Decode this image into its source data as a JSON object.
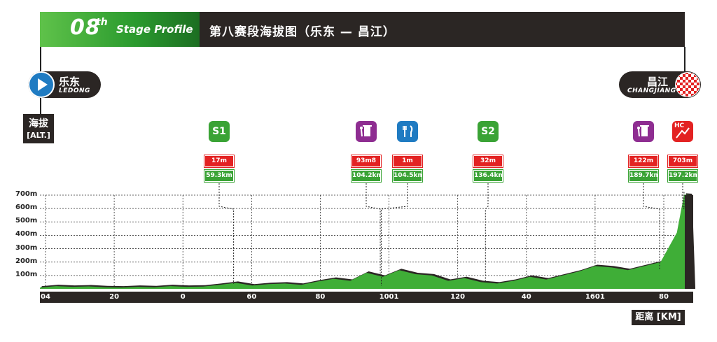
{
  "header": {
    "stage_number": "08",
    "stage_suffix": "th",
    "stage_label": "Stage Profile",
    "stage_title": "第八赛段海拔图（乐东 — 昌江）",
    "green_color": "#2a9a2e",
    "dark_color": "#2b2624"
  },
  "start": {
    "name_cn": "乐东",
    "name_en": "LEDONG",
    "icon": "play-arrow-icon"
  },
  "finish": {
    "name_cn": "昌江",
    "name_en": "CHANGJIANG",
    "icon": "checkered-flag-icon"
  },
  "altitude_box": {
    "cn": "海拔",
    "en": "[ALT.]"
  },
  "distance_box": {
    "label": "距离 [KM]"
  },
  "chart_data": {
    "type": "area",
    "y_ticks": [
      "100m",
      "200m",
      "300m",
      "400m",
      "500m",
      "600m",
      "700m"
    ],
    "x_ticks": [
      "04",
      "20",
      "0",
      "60",
      "80",
      "1001",
      "120",
      "40",
      "1601",
      "80"
    ],
    "ylim": [
      0,
      700
    ],
    "xlim": [
      0,
      200
    ],
    "grid": true,
    "profile": {
      "x": [
        0,
        5,
        10,
        15,
        20,
        25,
        30,
        35,
        40,
        45,
        50,
        55,
        60,
        65,
        70,
        75,
        80,
        85,
        90,
        95,
        100,
        105,
        110,
        115,
        120,
        125,
        130,
        135,
        140,
        145,
        150,
        155,
        160,
        165,
        170,
        175,
        180,
        185,
        190,
        195,
        197.2,
        199,
        200
      ],
      "y": [
        10,
        20,
        15,
        18,
        12,
        10,
        15,
        12,
        20,
        15,
        17,
        30,
        45,
        25,
        35,
        40,
        30,
        55,
        75,
        60,
        120,
        90,
        140,
        110,
        100,
        60,
        80,
        50,
        40,
        60,
        90,
        70,
        100,
        130,
        170,
        160,
        140,
        170,
        200,
        420,
        703,
        700,
        0
      ]
    },
    "markers": [
      {
        "type": "sprint",
        "label": "S1",
        "icon": "sprint-icon",
        "color": "#3aa335",
        "altitude": "17m",
        "km": "59.3km",
        "x": 59.3
      },
      {
        "type": "bin",
        "label": "",
        "icon": "trash-bin-icon",
        "color": "#8e2d91",
        "altitude": "93m8",
        "km": "104.2km",
        "x": 104.2
      },
      {
        "type": "feed",
        "label": "",
        "icon": "feed-zone-icon",
        "color": "#1f7bc2",
        "altitude": "1m",
        "km": "104.5km",
        "x": 104.5
      },
      {
        "type": "sprint",
        "label": "S2",
        "icon": "sprint-icon",
        "color": "#3aa335",
        "altitude": "32m",
        "km": "136.4km",
        "x": 136.4
      },
      {
        "type": "bin",
        "label": "",
        "icon": "trash-bin-icon",
        "color": "#8e2d91",
        "altitude": "122m",
        "km": "189.7km",
        "x": 189.7
      },
      {
        "type": "climb",
        "label": "HC",
        "icon": "mountain-icon",
        "color": "#e32222",
        "altitude": "703m",
        "km": "197.2km",
        "x": 197.2
      }
    ]
  }
}
